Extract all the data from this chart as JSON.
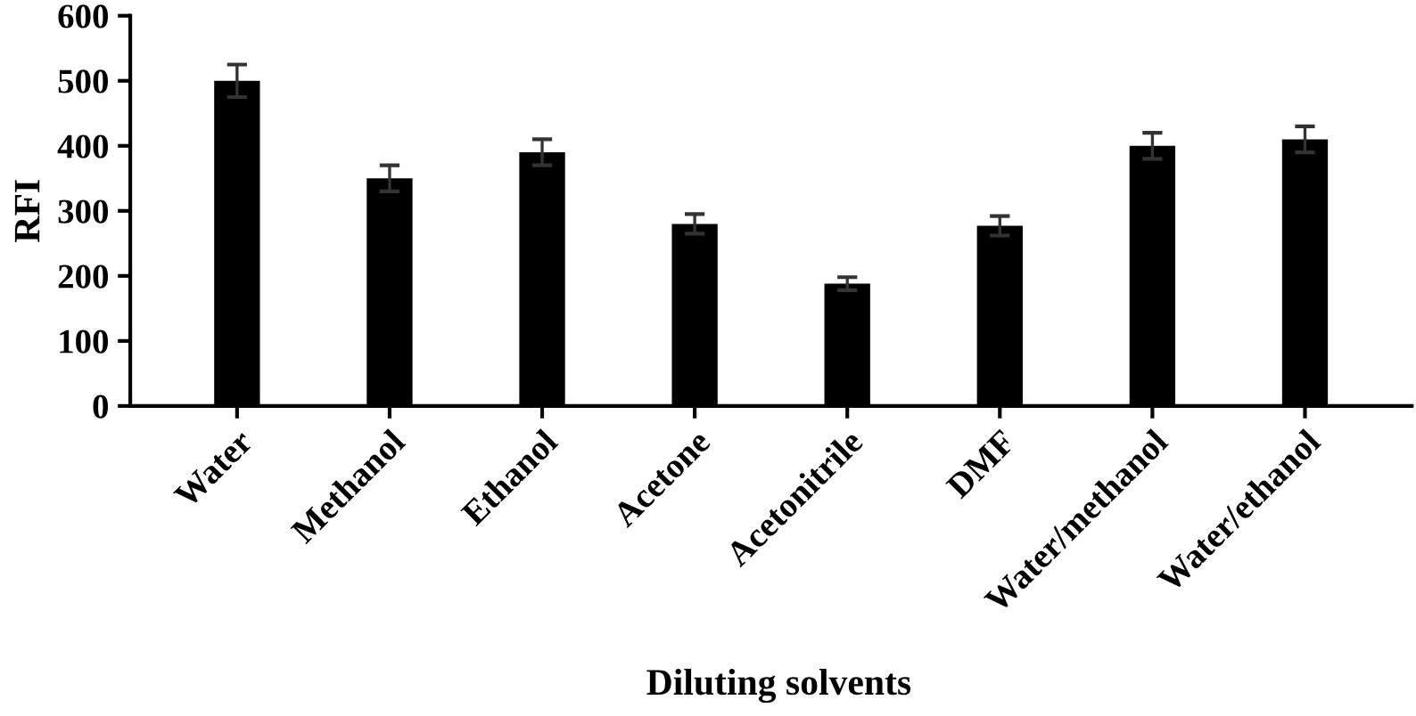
{
  "chart_data": {
    "type": "bar",
    "xlabel": "Diluting solvents",
    "ylabel": "RFI",
    "categories": [
      "Water",
      "Methanol",
      "Ethanol",
      "Acetone",
      "Acetonitrile",
      "DMF",
      "Water/methanol",
      "Water/ethanol"
    ],
    "values": [
      500,
      350,
      390,
      280,
      188,
      277,
      400,
      410
    ],
    "errors": [
      25,
      20,
      20,
      15,
      10,
      15,
      20,
      20
    ],
    "color": "#000000",
    "ylim": [
      0,
      600
    ],
    "yticks": [
      0,
      100,
      200,
      300,
      400,
      500,
      600
    ],
    "grid": false,
    "legend": false
  }
}
